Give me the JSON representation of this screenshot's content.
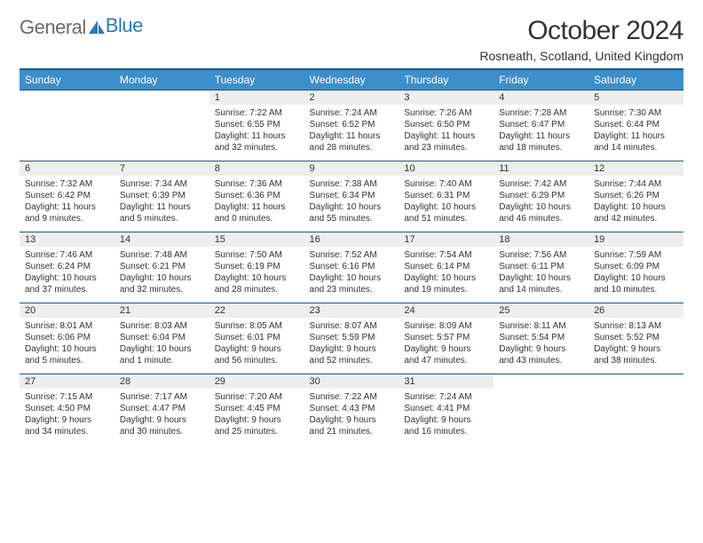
{
  "brand": {
    "word1": "General",
    "word2": "Blue"
  },
  "title": "October 2024",
  "subtitle": "Rosneath, Scotland, United Kingdom",
  "colors": {
    "header_bg": "#3d8ec9",
    "header_text": "#ffffff",
    "border": "#1a5a8a",
    "numrow_bg": "#eeeeee",
    "text": "#333333",
    "logo_gray": "#6b6b6b",
    "logo_blue": "#2a7ab8",
    "page_bg": "#ffffff"
  },
  "day_headers": [
    "Sunday",
    "Monday",
    "Tuesday",
    "Wednesday",
    "Thursday",
    "Friday",
    "Saturday"
  ],
  "weeks": [
    {
      "nums": [
        "",
        "",
        "1",
        "2",
        "3",
        "4",
        "5"
      ],
      "cells": [
        null,
        null,
        {
          "sunrise": "Sunrise: 7:22 AM",
          "sunset": "Sunset: 6:55 PM",
          "day1": "Daylight: 11 hours",
          "day2": "and 32 minutes."
        },
        {
          "sunrise": "Sunrise: 7:24 AM",
          "sunset": "Sunset: 6:52 PM",
          "day1": "Daylight: 11 hours",
          "day2": "and 28 minutes."
        },
        {
          "sunrise": "Sunrise: 7:26 AM",
          "sunset": "Sunset: 6:50 PM",
          "day1": "Daylight: 11 hours",
          "day2": "and 23 minutes."
        },
        {
          "sunrise": "Sunrise: 7:28 AM",
          "sunset": "Sunset: 6:47 PM",
          "day1": "Daylight: 11 hours",
          "day2": "and 18 minutes."
        },
        {
          "sunrise": "Sunrise: 7:30 AM",
          "sunset": "Sunset: 6:44 PM",
          "day1": "Daylight: 11 hours",
          "day2": "and 14 minutes."
        }
      ]
    },
    {
      "nums": [
        "6",
        "7",
        "8",
        "9",
        "10",
        "11",
        "12"
      ],
      "cells": [
        {
          "sunrise": "Sunrise: 7:32 AM",
          "sunset": "Sunset: 6:42 PM",
          "day1": "Daylight: 11 hours",
          "day2": "and 9 minutes."
        },
        {
          "sunrise": "Sunrise: 7:34 AM",
          "sunset": "Sunset: 6:39 PM",
          "day1": "Daylight: 11 hours",
          "day2": "and 5 minutes."
        },
        {
          "sunrise": "Sunrise: 7:36 AM",
          "sunset": "Sunset: 6:36 PM",
          "day1": "Daylight: 11 hours",
          "day2": "and 0 minutes."
        },
        {
          "sunrise": "Sunrise: 7:38 AM",
          "sunset": "Sunset: 6:34 PM",
          "day1": "Daylight: 10 hours",
          "day2": "and 55 minutes."
        },
        {
          "sunrise": "Sunrise: 7:40 AM",
          "sunset": "Sunset: 6:31 PM",
          "day1": "Daylight: 10 hours",
          "day2": "and 51 minutes."
        },
        {
          "sunrise": "Sunrise: 7:42 AM",
          "sunset": "Sunset: 6:29 PM",
          "day1": "Daylight: 10 hours",
          "day2": "and 46 minutes."
        },
        {
          "sunrise": "Sunrise: 7:44 AM",
          "sunset": "Sunset: 6:26 PM",
          "day1": "Daylight: 10 hours",
          "day2": "and 42 minutes."
        }
      ]
    },
    {
      "nums": [
        "13",
        "14",
        "15",
        "16",
        "17",
        "18",
        "19"
      ],
      "cells": [
        {
          "sunrise": "Sunrise: 7:46 AM",
          "sunset": "Sunset: 6:24 PM",
          "day1": "Daylight: 10 hours",
          "day2": "and 37 minutes."
        },
        {
          "sunrise": "Sunrise: 7:48 AM",
          "sunset": "Sunset: 6:21 PM",
          "day1": "Daylight: 10 hours",
          "day2": "and 32 minutes."
        },
        {
          "sunrise": "Sunrise: 7:50 AM",
          "sunset": "Sunset: 6:19 PM",
          "day1": "Daylight: 10 hours",
          "day2": "and 28 minutes."
        },
        {
          "sunrise": "Sunrise: 7:52 AM",
          "sunset": "Sunset: 6:16 PM",
          "day1": "Daylight: 10 hours",
          "day2": "and 23 minutes."
        },
        {
          "sunrise": "Sunrise: 7:54 AM",
          "sunset": "Sunset: 6:14 PM",
          "day1": "Daylight: 10 hours",
          "day2": "and 19 minutes."
        },
        {
          "sunrise": "Sunrise: 7:56 AM",
          "sunset": "Sunset: 6:11 PM",
          "day1": "Daylight: 10 hours",
          "day2": "and 14 minutes."
        },
        {
          "sunrise": "Sunrise: 7:59 AM",
          "sunset": "Sunset: 6:09 PM",
          "day1": "Daylight: 10 hours",
          "day2": "and 10 minutes."
        }
      ]
    },
    {
      "nums": [
        "20",
        "21",
        "22",
        "23",
        "24",
        "25",
        "26"
      ],
      "cells": [
        {
          "sunrise": "Sunrise: 8:01 AM",
          "sunset": "Sunset: 6:06 PM",
          "day1": "Daylight: 10 hours",
          "day2": "and 5 minutes."
        },
        {
          "sunrise": "Sunrise: 8:03 AM",
          "sunset": "Sunset: 6:04 PM",
          "day1": "Daylight: 10 hours",
          "day2": "and 1 minute."
        },
        {
          "sunrise": "Sunrise: 8:05 AM",
          "sunset": "Sunset: 6:01 PM",
          "day1": "Daylight: 9 hours",
          "day2": "and 56 minutes."
        },
        {
          "sunrise": "Sunrise: 8:07 AM",
          "sunset": "Sunset: 5:59 PM",
          "day1": "Daylight: 9 hours",
          "day2": "and 52 minutes."
        },
        {
          "sunrise": "Sunrise: 8:09 AM",
          "sunset": "Sunset: 5:57 PM",
          "day1": "Daylight: 9 hours",
          "day2": "and 47 minutes."
        },
        {
          "sunrise": "Sunrise: 8:11 AM",
          "sunset": "Sunset: 5:54 PM",
          "day1": "Daylight: 9 hours",
          "day2": "and 43 minutes."
        },
        {
          "sunrise": "Sunrise: 8:13 AM",
          "sunset": "Sunset: 5:52 PM",
          "day1": "Daylight: 9 hours",
          "day2": "and 38 minutes."
        }
      ]
    },
    {
      "nums": [
        "27",
        "28",
        "29",
        "30",
        "31",
        "",
        ""
      ],
      "cells": [
        {
          "sunrise": "Sunrise: 7:15 AM",
          "sunset": "Sunset: 4:50 PM",
          "day1": "Daylight: 9 hours",
          "day2": "and 34 minutes."
        },
        {
          "sunrise": "Sunrise: 7:17 AM",
          "sunset": "Sunset: 4:47 PM",
          "day1": "Daylight: 9 hours",
          "day2": "and 30 minutes."
        },
        {
          "sunrise": "Sunrise: 7:20 AM",
          "sunset": "Sunset: 4:45 PM",
          "day1": "Daylight: 9 hours",
          "day2": "and 25 minutes."
        },
        {
          "sunrise": "Sunrise: 7:22 AM",
          "sunset": "Sunset: 4:43 PM",
          "day1": "Daylight: 9 hours",
          "day2": "and 21 minutes."
        },
        {
          "sunrise": "Sunrise: 7:24 AM",
          "sunset": "Sunset: 4:41 PM",
          "day1": "Daylight: 9 hours",
          "day2": "and 16 minutes."
        },
        null,
        null
      ]
    }
  ]
}
